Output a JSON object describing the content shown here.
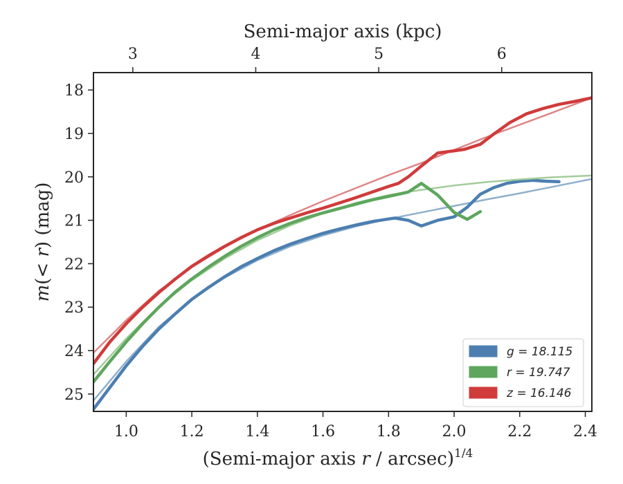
{
  "chart_data": {
    "type": "line",
    "xlabel": "(Semi-major axis r / arcsec)",
    "xlabel_sup": "1/4",
    "ylabel": "m(< r) (mag)",
    "top_xlabel": "Semi-major axis (kpc)",
    "xlim": [
      0.9,
      2.42
    ],
    "ylim": [
      25.4,
      17.6
    ],
    "y_inverted": true,
    "x_ticks": [
      "1.0",
      "1.2",
      "1.4",
      "1.6",
      "1.8",
      "2.0",
      "2.2",
      "2.4"
    ],
    "y_ticks": [
      "18",
      "19",
      "20",
      "21",
      "22",
      "23",
      "24",
      "25"
    ],
    "top_ticks": [
      {
        "label": "3",
        "x": 1.02
      },
      {
        "label": "4",
        "x": 1.395
      },
      {
        "label": "5",
        "x": 1.77
      },
      {
        "label": "6",
        "x": 2.145
      }
    ],
    "legend_position": "lower-right",
    "series": [
      {
        "name": "g = 18.115",
        "legend_label": "g = 18.115",
        "color": "#4c7fb0",
        "fit_color": "#8fb0cc",
        "data": [
          [
            0.9,
            25.35
          ],
          [
            0.95,
            24.85
          ],
          [
            1.0,
            24.35
          ],
          [
            1.05,
            23.9
          ],
          [
            1.1,
            23.5
          ],
          [
            1.15,
            23.15
          ],
          [
            1.2,
            22.82
          ],
          [
            1.25,
            22.55
          ],
          [
            1.3,
            22.3
          ],
          [
            1.35,
            22.07
          ],
          [
            1.4,
            21.88
          ],
          [
            1.45,
            21.7
          ],
          [
            1.5,
            21.55
          ],
          [
            1.55,
            21.42
          ],
          [
            1.6,
            21.3
          ],
          [
            1.65,
            21.2
          ],
          [
            1.7,
            21.11
          ],
          [
            1.75,
            21.03
          ],
          [
            1.8,
            20.97
          ],
          [
            1.82,
            20.95
          ],
          [
            1.86,
            21.0
          ],
          [
            1.9,
            21.13
          ],
          [
            1.95,
            21.0
          ],
          [
            2.0,
            20.92
          ],
          [
            2.04,
            20.7
          ],
          [
            2.08,
            20.4
          ],
          [
            2.12,
            20.25
          ],
          [
            2.16,
            20.15
          ],
          [
            2.2,
            20.1
          ],
          [
            2.24,
            20.08
          ],
          [
            2.28,
            20.1
          ],
          [
            2.32,
            20.11
          ]
        ],
        "fit": [
          [
            0.9,
            25.15
          ],
          [
            1.0,
            24.25
          ],
          [
            1.1,
            23.45
          ],
          [
            1.2,
            22.82
          ],
          [
            1.3,
            22.32
          ],
          [
            1.4,
            21.92
          ],
          [
            1.5,
            21.6
          ],
          [
            1.6,
            21.35
          ],
          [
            1.7,
            21.14
          ],
          [
            1.8,
            20.97
          ],
          [
            1.9,
            20.82
          ],
          [
            2.0,
            20.67
          ],
          [
            2.1,
            20.52
          ],
          [
            2.2,
            20.38
          ],
          [
            2.3,
            20.23
          ],
          [
            2.42,
            20.05
          ]
        ]
      },
      {
        "name": "r = 19.747",
        "legend_label": "r = 19.747",
        "color": "#5ea65e",
        "fit_color": "#a3cc9a",
        "data": [
          [
            0.9,
            24.72
          ],
          [
            0.95,
            24.25
          ],
          [
            1.0,
            23.8
          ],
          [
            1.05,
            23.38
          ],
          [
            1.1,
            23.0
          ],
          [
            1.15,
            22.65
          ],
          [
            1.2,
            22.35
          ],
          [
            1.25,
            22.08
          ],
          [
            1.3,
            21.83
          ],
          [
            1.35,
            21.6
          ],
          [
            1.4,
            21.4
          ],
          [
            1.45,
            21.22
          ],
          [
            1.5,
            21.07
          ],
          [
            1.55,
            20.94
          ],
          [
            1.6,
            20.83
          ],
          [
            1.65,
            20.73
          ],
          [
            1.7,
            20.63
          ],
          [
            1.75,
            20.53
          ],
          [
            1.8,
            20.45
          ],
          [
            1.86,
            20.35
          ],
          [
            1.9,
            20.15
          ],
          [
            1.95,
            20.42
          ],
          [
            2.0,
            20.82
          ],
          [
            2.04,
            20.98
          ],
          [
            2.08,
            20.8
          ]
        ],
        "fit": [
          [
            0.9,
            24.55
          ],
          [
            1.0,
            23.72
          ],
          [
            1.1,
            22.98
          ],
          [
            1.2,
            22.38
          ],
          [
            1.3,
            21.88
          ],
          [
            1.4,
            21.46
          ],
          [
            1.5,
            21.12
          ],
          [
            1.6,
            20.84
          ],
          [
            1.7,
            20.6
          ],
          [
            1.8,
            20.42
          ],
          [
            1.9,
            20.3
          ],
          [
            2.0,
            20.2
          ],
          [
            2.1,
            20.12
          ],
          [
            2.2,
            20.06
          ],
          [
            2.3,
            20.01
          ],
          [
            2.42,
            19.97
          ]
        ]
      },
      {
        "name": "z = 16.146",
        "legend_label": "z = 16.146",
        "color": "#d03b3b",
        "fit_color": "#de8585",
        "data": [
          [
            0.9,
            24.3
          ],
          [
            0.95,
            23.8
          ],
          [
            1.0,
            23.38
          ],
          [
            1.05,
            23.0
          ],
          [
            1.1,
            22.66
          ],
          [
            1.15,
            22.35
          ],
          [
            1.2,
            22.06
          ],
          [
            1.25,
            21.82
          ],
          [
            1.3,
            21.6
          ],
          [
            1.35,
            21.4
          ],
          [
            1.4,
            21.22
          ],
          [
            1.45,
            21.07
          ],
          [
            1.5,
            20.95
          ],
          [
            1.55,
            20.83
          ],
          [
            1.6,
            20.72
          ],
          [
            1.65,
            20.6
          ],
          [
            1.7,
            20.48
          ],
          [
            1.75,
            20.35
          ],
          [
            1.8,
            20.22
          ],
          [
            1.83,
            20.15
          ],
          [
            1.86,
            20.0
          ],
          [
            1.9,
            19.75
          ],
          [
            1.95,
            19.45
          ],
          [
            2.0,
            19.4
          ],
          [
            2.03,
            19.37
          ],
          [
            2.08,
            19.25
          ],
          [
            2.12,
            19.02
          ],
          [
            2.17,
            18.75
          ],
          [
            2.22,
            18.55
          ],
          [
            2.27,
            18.43
          ],
          [
            2.32,
            18.33
          ],
          [
            2.37,
            18.26
          ],
          [
            2.42,
            18.18
          ]
        ],
        "fit": [
          [
            0.9,
            24.05
          ],
          [
            1.0,
            23.3
          ],
          [
            1.1,
            22.62
          ],
          [
            1.2,
            22.08
          ],
          [
            1.3,
            21.62
          ],
          [
            1.4,
            21.22
          ],
          [
            1.5,
            20.88
          ],
          [
            1.6,
            20.56
          ],
          [
            1.7,
            20.26
          ],
          [
            1.8,
            19.96
          ],
          [
            1.9,
            19.68
          ],
          [
            2.0,
            19.38
          ],
          [
            2.1,
            19.08
          ],
          [
            2.2,
            18.8
          ],
          [
            2.3,
            18.52
          ],
          [
            2.42,
            18.18
          ]
        ]
      }
    ]
  }
}
